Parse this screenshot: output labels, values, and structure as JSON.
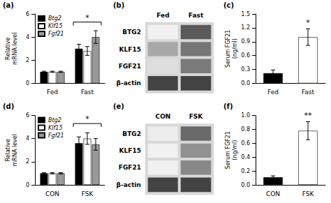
{
  "chart_data": [
    {
      "type": "bar",
      "title": "(a)",
      "categories": [
        "Fed",
        "Fast"
      ],
      "series": [
        {
          "name": "Btg2",
          "color": "#000000",
          "values": [
            1.0,
            3.0
          ],
          "errors": [
            0.05,
            0.38
          ]
        },
        {
          "name": "Klf15",
          "color": "#ffffff",
          "values": [
            1.0,
            2.8
          ],
          "errors": [
            0.05,
            0.38
          ]
        },
        {
          "name": "Fgf21",
          "color": "#999999",
          "values": [
            1.0,
            4.0
          ],
          "errors": [
            0.05,
            0.55
          ]
        }
      ],
      "ylabel": "Relative\nmRNA level",
      "ylim": [
        0,
        6
      ],
      "yticks": [
        0,
        2,
        4,
        6
      ],
      "annotations": [
        {
          "text": "*",
          "category": "Fast",
          "y": 5.3
        }
      ],
      "legend": "upper left",
      "grid": false
    },
    {
      "type": "heatmap",
      "title": "(b)",
      "categories": [
        "Fed",
        "Fast"
      ],
      "y_categories": [
        "BTG2",
        "KLF15",
        "FGF21",
        "β-actin"
      ],
      "values": [
        [
          0.06,
          0.72
        ],
        [
          0.38,
          0.6
        ],
        [
          0.15,
          0.58
        ],
        [
          0.82,
          0.82
        ]
      ],
      "zlim": [
        0,
        1
      ]
    },
    {
      "type": "bar",
      "title": "(c)",
      "categories": [
        "Fed",
        "Fast"
      ],
      "values": [
        0.22,
        1.0
      ],
      "errors": [
        0.07,
        0.18
      ],
      "colors": [
        "#000000",
        "#ffffff"
      ],
      "ylabel": "Serum FGF21\n(ng/ml)",
      "ylim": [
        0.0,
        1.5
      ],
      "yticks": [
        {
          "value": 0.0,
          "label": "0.0"
        },
        0.3,
        0.6,
        0.9,
        1.2,
        1.5
      ],
      "annotations": [
        {
          "text": "*",
          "category": "Fast"
        }
      ],
      "grid": false
    },
    {
      "type": "bar",
      "title": "(d)",
      "categories": [
        "CON",
        "FSK"
      ],
      "series": [
        {
          "name": "Btg2",
          "color": "#000000",
          "values": [
            1.0,
            3.6
          ],
          "errors": [
            0.05,
            0.55
          ]
        },
        {
          "name": "Klf15",
          "color": "#ffffff",
          "values": [
            1.0,
            4.0
          ],
          "errors": [
            0.05,
            0.5
          ]
        },
        {
          "name": "Fgf21",
          "color": "#999999",
          "values": [
            1.0,
            3.5
          ],
          "errors": [
            0.05,
            0.5
          ]
        }
      ],
      "ylabel": "Relative\nmRNA level",
      "ylim": [
        0,
        6
      ],
      "yticks": [
        0,
        2,
        4,
        6
      ],
      "annotations": [
        {
          "text": "*",
          "category": "FSK",
          "y": 5.3
        }
      ],
      "legend": "upper left",
      "grid": false
    },
    {
      "type": "heatmap",
      "title": "(e)",
      "categories": [
        "CON",
        "FSK"
      ],
      "y_categories": [
        "BTG2",
        "KLF15",
        "FGF21",
        "β-actin"
      ],
      "values": [
        [
          0.08,
          0.65
        ],
        [
          0.06,
          0.48
        ],
        [
          0.06,
          0.52
        ],
        [
          0.82,
          0.82
        ]
      ],
      "zlim": [
        0,
        1
      ]
    },
    {
      "type": "bar",
      "title": "(f)",
      "categories": [
        "CON",
        "FSK"
      ],
      "values": [
        0.11,
        0.78
      ],
      "errors": [
        0.02,
        0.13
      ],
      "colors": [
        "#000000",
        "#ffffff"
      ],
      "ylabel": "Serum FGF21\n(ng/ml)",
      "ylim": [
        0.0,
        1.0
      ],
      "yticks": [
        {
          "value": 0.0,
          "label": "0.0"
        },
        0.2,
        0.4,
        0.6,
        0.8,
        {
          "value": 1.0,
          "label": "1.0"
        }
      ],
      "annotations": [
        {
          "text": "**",
          "category": "FSK"
        }
      ],
      "grid": false
    }
  ]
}
